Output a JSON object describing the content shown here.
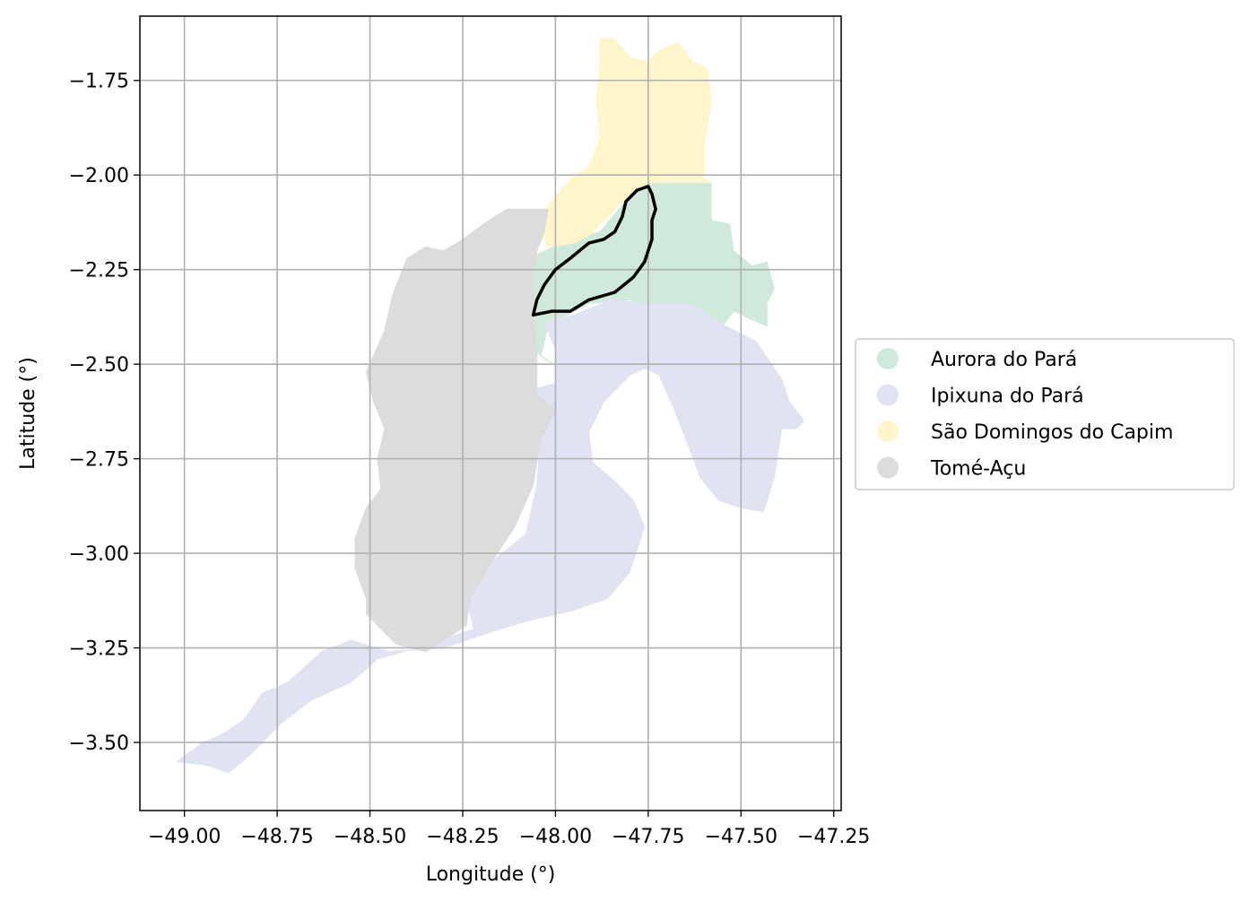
{
  "chart_data": {
    "type": "map",
    "xlabel": "Longitude (°)",
    "ylabel": "Latitude (°)",
    "xlim": [
      -49.12,
      -47.23
    ],
    "ylim": [
      -3.68,
      -1.58
    ],
    "x_ticks": [
      -49.0,
      -48.75,
      -48.5,
      -48.25,
      -48.0,
      -47.75,
      -47.5,
      -47.25
    ],
    "x_tick_labels": [
      "−49.00",
      "−48.75",
      "−48.50",
      "−48.25",
      "−48.00",
      "−47.75",
      "−47.50",
      "−47.25"
    ],
    "y_ticks": [
      -1.75,
      -2.0,
      -2.25,
      -2.5,
      -2.75,
      -3.0,
      -3.25,
      -3.5
    ],
    "y_tick_labels": [
      "−1.75",
      "−2.00",
      "−2.25",
      "−2.50",
      "−2.75",
      "−3.00",
      "−3.25",
      "−3.50"
    ],
    "grid": true,
    "legend_position": "right",
    "regions": [
      {
        "name": "Aurora do Pará",
        "color": "#cfeadb",
        "polygons": [
          [
            [
              -48.1,
              -2.19
            ],
            [
              -48.05,
              -2.21
            ],
            [
              -47.96,
              -2.17
            ],
            [
              -47.88,
              -2.15
            ],
            [
              -47.82,
              -2.08
            ],
            [
              -47.78,
              -2.02
            ],
            [
              -47.58,
              -2.02
            ],
            [
              -47.58,
              -2.12
            ],
            [
              -47.53,
              -2.13
            ],
            [
              -47.52,
              -2.2
            ],
            [
              -47.47,
              -2.24
            ],
            [
              -47.43,
              -2.23
            ],
            [
              -47.41,
              -2.3
            ],
            [
              -47.43,
              -2.34
            ],
            [
              -47.43,
              -2.4
            ],
            [
              -47.52,
              -2.36
            ],
            [
              -47.55,
              -2.4
            ],
            [
              -47.68,
              -2.36
            ],
            [
              -47.8,
              -2.33
            ],
            [
              -47.91,
              -2.34
            ],
            [
              -47.97,
              -2.37
            ],
            [
              -48.02,
              -2.4
            ],
            [
              -48.04,
              -2.48
            ],
            [
              -47.99,
              -2.51
            ],
            [
              -48.05,
              -2.47
            ],
            [
              -48.06,
              -2.38
            ],
            [
              -48.06,
              -2.27
            ]
          ]
        ]
      },
      {
        "name": "Ipixuna do Pará",
        "color": "#dfe3f2",
        "polygons": [
          [
            [
              -48.03,
              -2.39
            ],
            [
              -47.95,
              -2.37
            ],
            [
              -47.85,
              -2.33
            ],
            [
              -47.75,
              -2.34
            ],
            [
              -47.64,
              -2.34
            ],
            [
              -47.54,
              -2.4
            ],
            [
              -47.46,
              -2.44
            ],
            [
              -47.39,
              -2.54
            ],
            [
              -47.37,
              -2.6
            ],
            [
              -47.33,
              -2.65
            ],
            [
              -47.35,
              -2.67
            ],
            [
              -47.39,
              -2.67
            ],
            [
              -47.4,
              -2.73
            ],
            [
              -47.41,
              -2.8
            ],
            [
              -47.43,
              -2.86
            ],
            [
              -47.44,
              -2.89
            ],
            [
              -47.5,
              -2.88
            ],
            [
              -47.56,
              -2.86
            ],
            [
              -47.61,
              -2.8
            ],
            [
              -47.64,
              -2.72
            ],
            [
              -47.68,
              -2.62
            ],
            [
              -47.72,
              -2.53
            ],
            [
              -47.76,
              -2.51
            ],
            [
              -47.8,
              -2.53
            ],
            [
              -47.87,
              -2.6
            ],
            [
              -47.91,
              -2.68
            ],
            [
              -47.9,
              -2.76
            ],
            [
              -47.84,
              -2.81
            ],
            [
              -47.79,
              -2.86
            ],
            [
              -47.76,
              -2.93
            ],
            [
              -47.8,
              -3.05
            ],
            [
              -47.86,
              -3.12
            ],
            [
              -47.95,
              -3.15
            ],
            [
              -48.08,
              -3.18
            ],
            [
              -48.18,
              -3.21
            ],
            [
              -48.3,
              -3.25
            ],
            [
              -48.45,
              -3.26
            ],
            [
              -48.55,
              -3.23
            ],
            [
              -48.63,
              -3.26
            ],
            [
              -48.72,
              -3.34
            ],
            [
              -48.79,
              -3.37
            ],
            [
              -48.84,
              -3.44
            ],
            [
              -48.9,
              -3.48
            ],
            [
              -48.95,
              -3.5
            ],
            [
              -49.02,
              -3.55
            ],
            [
              -48.94,
              -3.56
            ],
            [
              -48.88,
              -3.58
            ],
            [
              -48.82,
              -3.53
            ],
            [
              -48.74,
              -3.45
            ],
            [
              -48.66,
              -3.39
            ],
            [
              -48.55,
              -3.34
            ],
            [
              -48.48,
              -3.28
            ],
            [
              -48.34,
              -3.24
            ],
            [
              -48.22,
              -3.2
            ],
            [
              -48.24,
              -3.12
            ],
            [
              -48.17,
              -3.02
            ],
            [
              -48.08,
              -2.95
            ],
            [
              -48.05,
              -2.82
            ],
            [
              -48.04,
              -2.69
            ],
            [
              -48.01,
              -2.62
            ],
            [
              -48.07,
              -2.57
            ],
            [
              -48.0,
              -2.55
            ],
            [
              -48.0,
              -2.46
            ]
          ]
        ]
      },
      {
        "name": "São Domingos do Capim",
        "color": "#fef5cb",
        "polygons": [
          [
            [
              -47.88,
              -1.64
            ],
            [
              -47.84,
              -1.64
            ],
            [
              -47.8,
              -1.69
            ],
            [
              -47.75,
              -1.7
            ],
            [
              -47.72,
              -1.67
            ],
            [
              -47.67,
              -1.65
            ],
            [
              -47.63,
              -1.7
            ],
            [
              -47.59,
              -1.72
            ],
            [
              -47.58,
              -1.8
            ],
            [
              -47.59,
              -1.87
            ],
            [
              -47.6,
              -1.92
            ],
            [
              -47.6,
              -2.01
            ],
            [
              -47.58,
              -2.02
            ],
            [
              -47.75,
              -2.02
            ],
            [
              -47.8,
              -2.05
            ],
            [
              -47.85,
              -2.1
            ],
            [
              -47.91,
              -2.16
            ],
            [
              -47.95,
              -2.18
            ],
            [
              -48.02,
              -2.19
            ],
            [
              -48.04,
              -2.15
            ],
            [
              -48.02,
              -2.08
            ],
            [
              -47.96,
              -2.01
            ],
            [
              -47.91,
              -1.98
            ],
            [
              -47.88,
              -1.9
            ],
            [
              -47.89,
              -1.8
            ],
            [
              -47.88,
              -1.71
            ]
          ]
        ]
      },
      {
        "name": "Tomé-Açu",
        "color": "#dcdcdc",
        "polygons": [
          [
            [
              -48.02,
              -2.09
            ],
            [
              -48.13,
              -2.09
            ],
            [
              -48.18,
              -2.12
            ],
            [
              -48.25,
              -2.17
            ],
            [
              -48.3,
              -2.2
            ],
            [
              -48.35,
              -2.19
            ],
            [
              -48.4,
              -2.22
            ],
            [
              -48.42,
              -2.27
            ],
            [
              -48.44,
              -2.32
            ],
            [
              -48.46,
              -2.41
            ],
            [
              -48.51,
              -2.52
            ],
            [
              -48.49,
              -2.6
            ],
            [
              -48.46,
              -2.67
            ],
            [
              -48.48,
              -2.75
            ],
            [
              -48.47,
              -2.83
            ],
            [
              -48.51,
              -2.88
            ],
            [
              -48.54,
              -2.96
            ],
            [
              -48.54,
              -3.04
            ],
            [
              -48.51,
              -3.12
            ],
            [
              -48.51,
              -3.16
            ],
            [
              -48.47,
              -3.2
            ],
            [
              -48.43,
              -3.24
            ],
            [
              -48.35,
              -3.26
            ],
            [
              -48.3,
              -3.23
            ],
            [
              -48.24,
              -3.19
            ],
            [
              -48.23,
              -3.12
            ],
            [
              -48.17,
              -3.02
            ],
            [
              -48.11,
              -2.93
            ],
            [
              -48.06,
              -2.82
            ],
            [
              -48.04,
              -2.7
            ],
            [
              -48.0,
              -2.62
            ],
            [
              -48.05,
              -2.58
            ],
            [
              -48.05,
              -2.46
            ],
            [
              -48.06,
              -2.35
            ],
            [
              -48.06,
              -2.27
            ],
            [
              -48.05,
              -2.2
            ],
            [
              -48.03,
              -2.15
            ]
          ]
        ]
      }
    ],
    "highlight_outline": {
      "color": "#000000",
      "polygons": [
        [
          [
            -48.06,
            -2.37
          ],
          [
            -48.01,
            -2.36
          ],
          [
            -47.96,
            -2.36
          ],
          [
            -47.91,
            -2.33
          ],
          [
            -47.84,
            -2.31
          ],
          [
            -47.79,
            -2.27
          ],
          [
            -47.76,
            -2.23
          ],
          [
            -47.74,
            -2.17
          ],
          [
            -47.74,
            -2.12
          ],
          [
            -47.73,
            -2.09
          ],
          [
            -47.74,
            -2.05
          ],
          [
            -47.75,
            -2.03
          ],
          [
            -47.78,
            -2.04
          ],
          [
            -47.81,
            -2.07
          ],
          [
            -47.82,
            -2.11
          ],
          [
            -47.84,
            -2.15
          ],
          [
            -47.87,
            -2.17
          ],
          [
            -47.91,
            -2.18
          ],
          [
            -47.96,
            -2.22
          ],
          [
            -48.0,
            -2.25
          ],
          [
            -48.03,
            -2.29
          ],
          [
            -48.05,
            -2.33
          ]
        ]
      ]
    }
  }
}
